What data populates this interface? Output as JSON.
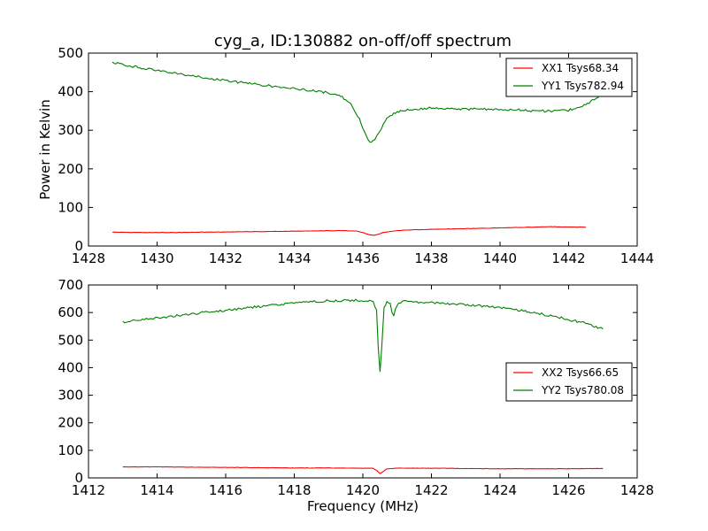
{
  "title": "cyg_a, ID:130882 on-off/off spectrum",
  "chart_data": [
    {
      "type": "line",
      "xlim": [
        1428,
        1444
      ],
      "ylim": [
        0,
        500
      ],
      "xticks": [
        1428,
        1430,
        1432,
        1434,
        1436,
        1438,
        1440,
        1442,
        1444
      ],
      "yticks": [
        0,
        100,
        200,
        300,
        400,
        500
      ],
      "xlabel": "",
      "ylabel": "Power in Kelvin",
      "legend_position": "top-right",
      "series": [
        {
          "name": "XX1 Tsys68.34",
          "color": "#ff0000",
          "x": [
            1428.7,
            1429.5,
            1430.5,
            1431.5,
            1432.5,
            1433.5,
            1434.5,
            1435.3,
            1435.8,
            1436.0,
            1436.2,
            1436.35,
            1436.6,
            1437.0,
            1437.5,
            1438.5,
            1439.5,
            1440.5,
            1441.5,
            1442.5
          ],
          "y": [
            36,
            35,
            35,
            36,
            37,
            38,
            39,
            40,
            39,
            35,
            29,
            28,
            35,
            40,
            42,
            44,
            46,
            48,
            50,
            49
          ]
        },
        {
          "name": "YY1 Tsys782.94",
          "color": "#007f00",
          "x": [
            1428.7,
            1429.0,
            1429.5,
            1430.0,
            1430.5,
            1431.0,
            1431.5,
            1432.0,
            1432.5,
            1433.0,
            1433.5,
            1434.0,
            1434.5,
            1435.0,
            1435.3,
            1435.5,
            1435.7,
            1435.9,
            1436.05,
            1436.2,
            1436.35,
            1436.5,
            1436.7,
            1437.0,
            1437.5,
            1438.0,
            1438.5,
            1439.0,
            1439.5,
            1440.0,
            1440.5,
            1441.0,
            1441.5,
            1442.0,
            1442.3,
            1442.6,
            1442.9
          ],
          "y": [
            476,
            470,
            462,
            455,
            448,
            441,
            435,
            429,
            423,
            418,
            413,
            408,
            403,
            397,
            390,
            380,
            362,
            330,
            295,
            268,
            275,
            300,
            330,
            348,
            355,
            358,
            357,
            355,
            355,
            355,
            353,
            350,
            350,
            352,
            358,
            372,
            390
          ]
        }
      ]
    },
    {
      "type": "line",
      "xlim": [
        1412,
        1428
      ],
      "ylim": [
        0,
        700
      ],
      "xticks": [
        1412,
        1414,
        1416,
        1418,
        1420,
        1422,
        1424,
        1426,
        1428
      ],
      "yticks": [
        0,
        100,
        200,
        300,
        400,
        500,
        600,
        700
      ],
      "xlabel": "Frequency (MHz)",
      "ylabel": "",
      "legend_position": "center-right",
      "series": [
        {
          "name": "XX2 Tsys66.65",
          "color": "#ff0000",
          "x": [
            1413.0,
            1414.0,
            1415.0,
            1416.0,
            1417.0,
            1418.0,
            1419.0,
            1420.0,
            1420.3,
            1420.42,
            1420.5,
            1420.58,
            1420.7,
            1421.0,
            1422.0,
            1423.0,
            1424.0,
            1425.0,
            1426.0,
            1427.0
          ],
          "y": [
            40,
            40,
            39,
            38,
            37,
            36,
            36,
            35,
            35,
            25,
            15,
            22,
            33,
            35,
            35,
            34,
            33,
            33,
            33,
            34
          ]
        },
        {
          "name": "YY2 Tsys780.08",
          "color": "#007f00",
          "x": [
            1413.0,
            1414.0,
            1415.0,
            1416.0,
            1417.0,
            1418.0,
            1419.0,
            1420.0,
            1420.3,
            1420.4,
            1420.45,
            1420.5,
            1420.55,
            1420.62,
            1420.7,
            1420.8,
            1420.85,
            1420.9,
            1420.95,
            1421.05,
            1421.2,
            1422.0,
            1423.0,
            1424.0,
            1425.0,
            1426.0,
            1426.5,
            1427.0
          ],
          "y": [
            565,
            580,
            595,
            608,
            622,
            634,
            643,
            645,
            640,
            610,
            470,
            385,
            470,
            615,
            640,
            635,
            600,
            590,
            612,
            635,
            640,
            635,
            628,
            618,
            600,
            575,
            560,
            540
          ]
        }
      ]
    }
  ]
}
